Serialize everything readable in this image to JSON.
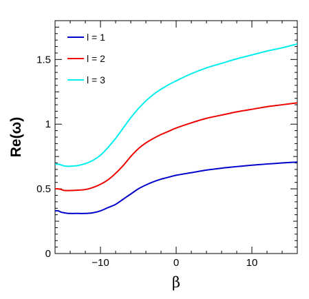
{
  "chart_data": {
    "type": "line",
    "xlabel": "β",
    "ylabel": "Re(ω)",
    "xlim": [
      -16,
      16
    ],
    "ylim": [
      0,
      1.8
    ],
    "x_ticks": [
      -10,
      0,
      10
    ],
    "y_ticks": [
      0,
      0.5,
      1,
      1.5
    ],
    "x_tick_labels": [
      "−10",
      "0",
      "10"
    ],
    "y_tick_labels": [
      "0",
      "0.5",
      "1",
      "1.5"
    ],
    "grid": false,
    "legend_position": "top-left",
    "series": [
      {
        "name": "l = 1",
        "color": "#0000cc",
        "x": [
          -16,
          -15.6,
          -15.2,
          -14.8,
          -14.5,
          -14,
          -13,
          -12,
          -11,
          -10,
          -9,
          -8,
          -7,
          -6,
          -5,
          -4,
          -3,
          -2,
          -1,
          0,
          2,
          4,
          6,
          8,
          10,
          12,
          14,
          16
        ],
        "y": [
          0.33,
          0.33,
          0.32,
          0.315,
          0.312,
          0.31,
          0.31,
          0.31,
          0.315,
          0.33,
          0.355,
          0.38,
          0.42,
          0.46,
          0.5,
          0.53,
          0.555,
          0.575,
          0.59,
          0.605,
          0.625,
          0.645,
          0.66,
          0.672,
          0.683,
          0.692,
          0.7,
          0.707
        ]
      },
      {
        "name": "l = 2",
        "color": "#ee0000",
        "x": [
          -16,
          -15.6,
          -15.2,
          -14.8,
          -14.5,
          -14,
          -13,
          -12,
          -11,
          -10,
          -9,
          -8,
          -7,
          -6,
          -5,
          -4,
          -3,
          -2,
          -1,
          0,
          2,
          4,
          6,
          8,
          10,
          12,
          14,
          16
        ],
        "y": [
          0.5,
          0.5,
          0.495,
          0.488,
          0.487,
          0.487,
          0.49,
          0.495,
          0.51,
          0.535,
          0.57,
          0.62,
          0.68,
          0.75,
          0.81,
          0.855,
          0.89,
          0.92,
          0.945,
          0.97,
          1.01,
          1.045,
          1.07,
          1.095,
          1.115,
          1.135,
          1.15,
          1.165
        ]
      },
      {
        "name": "l = 3",
        "color": "#00eeee",
        "x": [
          -16,
          -15.6,
          -15.2,
          -14.8,
          -14.5,
          -14,
          -13,
          -12,
          -11,
          -10,
          -9,
          -8,
          -7,
          -6,
          -5,
          -4,
          -3,
          -2,
          -1,
          0,
          2,
          4,
          6,
          8,
          10,
          12,
          14,
          16
        ],
        "y": [
          0.69,
          0.69,
          0.685,
          0.677,
          0.675,
          0.675,
          0.68,
          0.695,
          0.72,
          0.76,
          0.82,
          0.89,
          0.97,
          1.05,
          1.12,
          1.18,
          1.23,
          1.27,
          1.305,
          1.335,
          1.39,
          1.435,
          1.47,
          1.505,
          1.535,
          1.565,
          1.59,
          1.62
        ]
      }
    ]
  }
}
